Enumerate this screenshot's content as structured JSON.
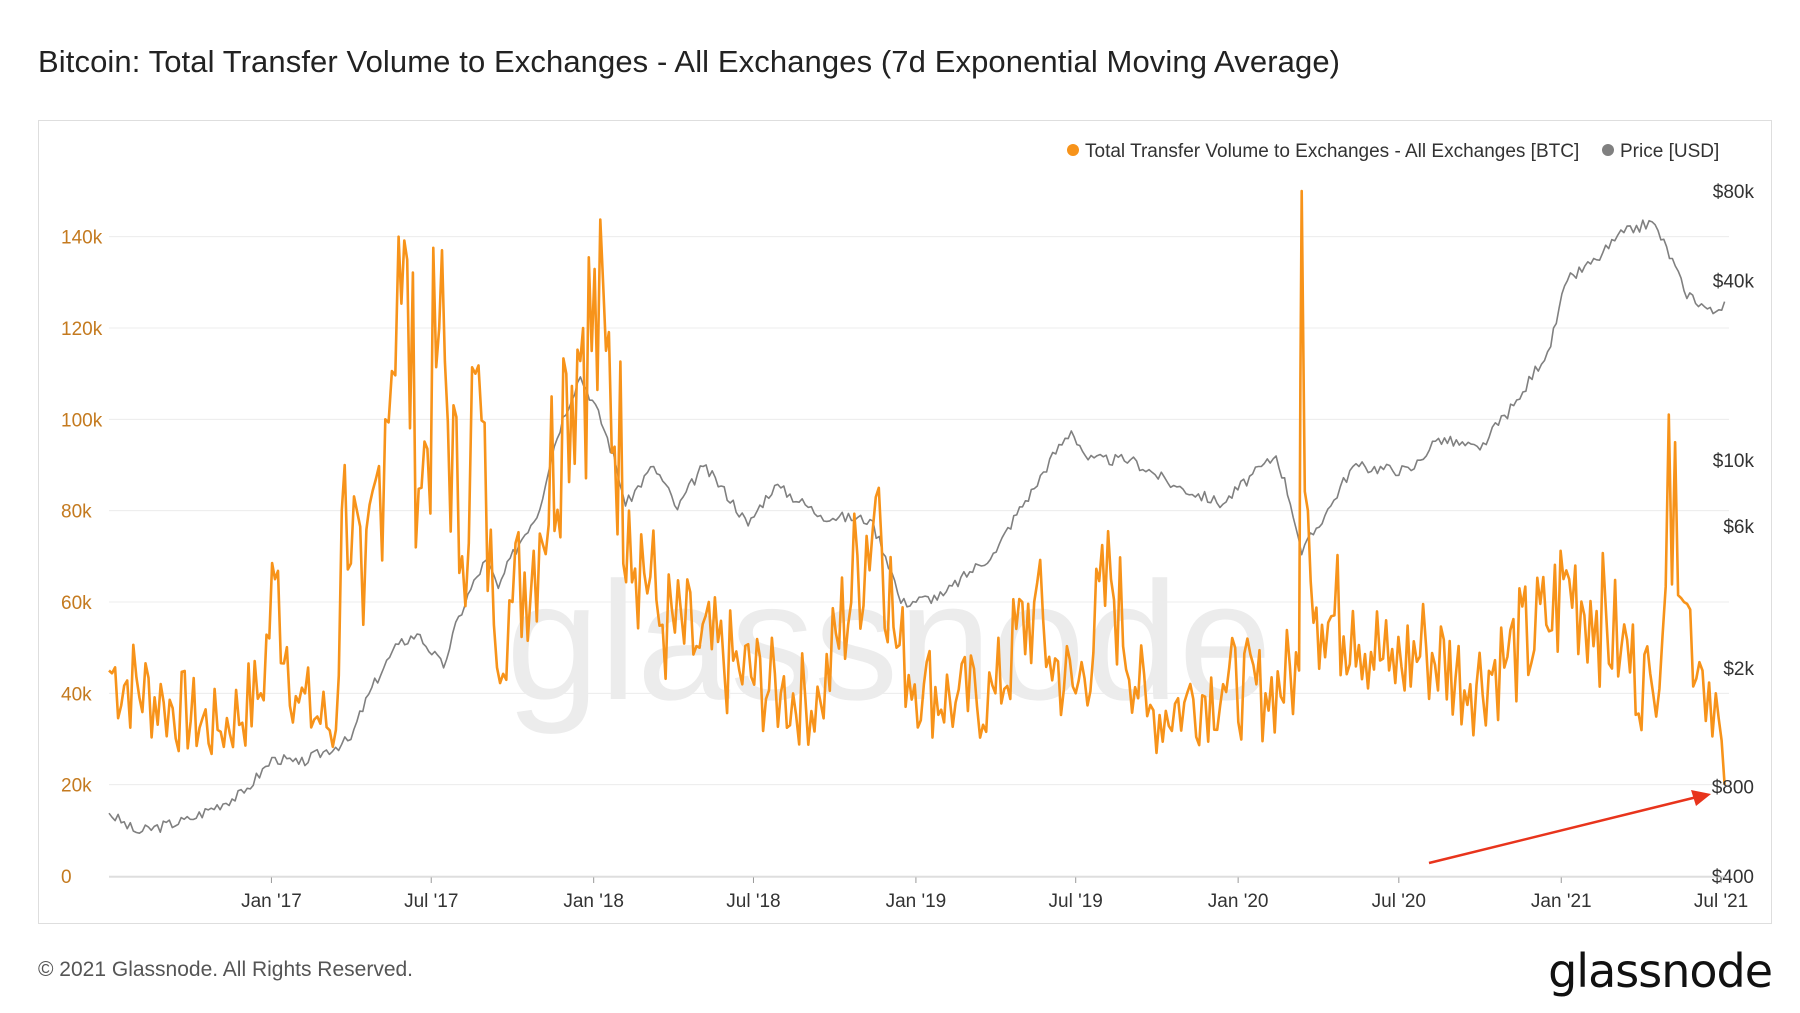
{
  "title": "Bitcoin: Total Transfer Volume to Exchanges - All Exchanges (7d Exponential Moving Average)",
  "footer": "© 2021 Glassnode. All Rights Reserved.",
  "brand": "glassnode",
  "watermark": "glassnode",
  "colors": {
    "volume": "#f7931a",
    "price": "#808080",
    "arrow": "#e8341c",
    "grid": "#ececec",
    "left_axis_text": "#c47a1f",
    "right_axis_text": "#333333"
  },
  "chart_data": {
    "type": "line",
    "x_ticks": [
      "Jan '17",
      "Jul '17",
      "Jan '18",
      "Jul '18",
      "Jan '19",
      "Jul '19",
      "Jan '20",
      "Jul '20",
      "Jan '21",
      "Jul '21"
    ],
    "y_left": {
      "ticks": [
        "0",
        "20k",
        "40k",
        "60k",
        "80k",
        "100k",
        "120k",
        "140k"
      ],
      "range": [
        0,
        150000
      ]
    },
    "y_right": {
      "ticks": [
        "$400",
        "$800",
        "$2k",
        "$6k",
        "$10k",
        "$40k",
        "$80k"
      ],
      "scale": "log",
      "range": [
        400,
        80000
      ]
    },
    "legend": {
      "position": "top-right"
    },
    "grid": true,
    "series": [
      {
        "name": "Total Transfer Volume to Exchanges - All Exchanges [BTC]",
        "axis": "left",
        "x": [
          "2016-07-01",
          "2016-09-01",
          "2016-11-01",
          "2016-12-20",
          "2017-01-05",
          "2017-02-01",
          "2017-03-15",
          "2017-03-25",
          "2017-04-15",
          "2017-05-10",
          "2017-05-25",
          "2017-06-20",
          "2017-07-10",
          "2017-08-05",
          "2017-08-20",
          "2017-09-10",
          "2017-10-01",
          "2017-11-01",
          "2017-12-01",
          "2017-12-20",
          "2018-01-15",
          "2018-02-10",
          "2018-03-20",
          "2018-05-01",
          "2018-06-15",
          "2018-08-01",
          "2018-09-15",
          "2018-11-20",
          "2018-12-10",
          "2019-01-10",
          "2019-02-15",
          "2019-04-01",
          "2019-05-15",
          "2019-06-01",
          "2019-07-01",
          "2019-08-10",
          "2019-09-20",
          "2019-11-01",
          "2019-12-15",
          "2020-02-01",
          "2020-03-10",
          "2020-03-13",
          "2020-03-20",
          "2020-04-05",
          "2020-05-10",
          "2020-06-20",
          "2020-08-01",
          "2020-09-20",
          "2020-11-01",
          "2020-12-15",
          "2021-01-10",
          "2021-02-10",
          "2021-03-10",
          "2021-04-15",
          "2021-05-10",
          "2021-05-20",
          "2021-06-10",
          "2021-06-25",
          "2021-07-05"
        ],
        "y": [
          45000,
          38000,
          32000,
          40000,
          65000,
          38000,
          32000,
          90000,
          55000,
          100000,
          140000,
          85000,
          120000,
          70000,
          110000,
          55000,
          60000,
          75000,
          110000,
          120000,
          115000,
          80000,
          55000,
          50000,
          45000,
          40000,
          38000,
          85000,
          50000,
          42000,
          38000,
          40000,
          60000,
          48000,
          40000,
          65000,
          35000,
          38000,
          42000,
          40000,
          45000,
          150000,
          80000,
          55000,
          58000,
          45000,
          50000,
          42000,
          48000,
          55000,
          65000,
          58000,
          50000,
          40000,
          95000,
          60000,
          45000,
          40000,
          20000
        ]
      },
      {
        "name": "Price [USD]",
        "axis": "right",
        "x": [
          "2016-07-01",
          "2016-08-01",
          "2016-10-01",
          "2016-12-01",
          "2017-01-05",
          "2017-02-01",
          "2017-04-01",
          "2017-05-25",
          "2017-06-15",
          "2017-07-15",
          "2017-09-01",
          "2017-09-15",
          "2017-11-01",
          "2017-12-17",
          "2018-02-06",
          "2018-03-10",
          "2018-04-06",
          "2018-05-05",
          "2018-06-25",
          "2018-07-25",
          "2018-09-15",
          "2018-11-10",
          "2018-12-15",
          "2019-02-01",
          "2019-04-02",
          "2019-05-15",
          "2019-06-26",
          "2019-07-15",
          "2019-09-01",
          "2019-10-20",
          "2019-12-15",
          "2020-02-13",
          "2020-03-13",
          "2020-04-15",
          "2020-05-10",
          "2020-07-15",
          "2020-08-15",
          "2020-10-01",
          "2020-11-15",
          "2020-12-20",
          "2021-01-08",
          "2021-02-10",
          "2021-03-13",
          "2021-04-14",
          "2021-05-20",
          "2021-06-22",
          "2021-07-05"
        ],
        "y": [
          650,
          560,
          620,
          760,
          1000,
          950,
          1150,
          2400,
          2600,
          2000,
          4600,
          3700,
          6800,
          19000,
          7000,
          9500,
          6800,
          9500,
          6000,
          8200,
          6500,
          6300,
          3300,
          3500,
          4900,
          8000,
          12500,
          10000,
          10000,
          8200,
          7100,
          10300,
          4800,
          7000,
          9500,
          9200,
          11800,
          10800,
          16000,
          24000,
          40000,
          47000,
          58000,
          63000,
          37000,
          31000,
          34000
        ]
      }
    ]
  }
}
